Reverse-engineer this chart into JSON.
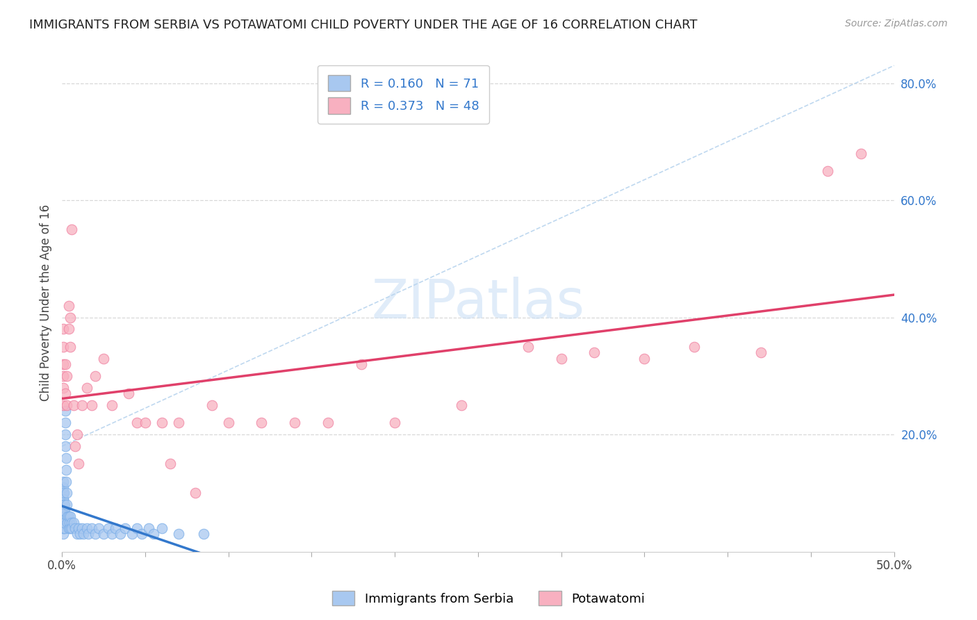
{
  "title": "IMMIGRANTS FROM SERBIA VS POTAWATOMI CHILD POVERTY UNDER THE AGE OF 16 CORRELATION CHART",
  "source": "Source: ZipAtlas.com",
  "ylabel": "Child Poverty Under the Age of 16",
  "xlim": [
    0,
    0.5
  ],
  "ylim": [
    0,
    0.85
  ],
  "watermark": "ZIPatlas",
  "serbia_color": "#a8c8f0",
  "serbia_edge_color": "#7aaee8",
  "potawatomi_color": "#f8b0c0",
  "potawatomi_edge_color": "#f080a0",
  "serbia_line_color": "#3378cc",
  "potawatomi_line_color": "#e0406a",
  "dash_color": "#b8d4ee",
  "grid_color": "#d8d8d8",
  "right_tick_color": "#3378cc",
  "serbia_R": 0.16,
  "serbia_N": 71,
  "potawatomi_R": 0.373,
  "potawatomi_N": 48,
  "serbia_x": [
    0.0005,
    0.0005,
    0.0006,
    0.0006,
    0.0007,
    0.0007,
    0.0008,
    0.0008,
    0.0009,
    0.0009,
    0.001,
    0.001,
    0.001,
    0.001,
    0.001,
    0.001,
    0.001,
    0.0012,
    0.0012,
    0.0013,
    0.0013,
    0.0014,
    0.0015,
    0.0015,
    0.0016,
    0.0017,
    0.0018,
    0.002,
    0.002,
    0.002,
    0.0022,
    0.0023,
    0.0025,
    0.0025,
    0.003,
    0.003,
    0.0032,
    0.0035,
    0.004,
    0.004,
    0.0045,
    0.005,
    0.005,
    0.006,
    0.006,
    0.007,
    0.008,
    0.009,
    0.01,
    0.011,
    0.012,
    0.013,
    0.015,
    0.016,
    0.018,
    0.02,
    0.022,
    0.025,
    0.028,
    0.03,
    0.032,
    0.035,
    0.038,
    0.042,
    0.045,
    0.048,
    0.052,
    0.055,
    0.06,
    0.07,
    0.085
  ],
  "serbia_y": [
    0.05,
    0.08,
    0.06,
    0.1,
    0.07,
    0.09,
    0.04,
    0.11,
    0.06,
    0.08,
    0.03,
    0.05,
    0.07,
    0.09,
    0.12,
    0.04,
    0.06,
    0.05,
    0.08,
    0.06,
    0.1,
    0.07,
    0.04,
    0.06,
    0.08,
    0.05,
    0.07,
    0.22,
    0.24,
    0.2,
    0.18,
    0.16,
    0.14,
    0.12,
    0.1,
    0.08,
    0.06,
    0.05,
    0.04,
    0.06,
    0.05,
    0.04,
    0.06,
    0.05,
    0.04,
    0.05,
    0.04,
    0.03,
    0.04,
    0.03,
    0.04,
    0.03,
    0.04,
    0.03,
    0.04,
    0.03,
    0.04,
    0.03,
    0.04,
    0.03,
    0.04,
    0.03,
    0.04,
    0.03,
    0.04,
    0.03,
    0.04,
    0.03,
    0.04,
    0.03,
    0.03
  ],
  "potawatomi_x": [
    0.001,
    0.001,
    0.001,
    0.001,
    0.001,
    0.001,
    0.002,
    0.002,
    0.003,
    0.003,
    0.004,
    0.004,
    0.005,
    0.005,
    0.006,
    0.007,
    0.008,
    0.009,
    0.01,
    0.012,
    0.015,
    0.018,
    0.02,
    0.025,
    0.03,
    0.04,
    0.045,
    0.05,
    0.06,
    0.065,
    0.07,
    0.08,
    0.09,
    0.1,
    0.12,
    0.14,
    0.16,
    0.18,
    0.2,
    0.24,
    0.28,
    0.3,
    0.32,
    0.35,
    0.38,
    0.42,
    0.46,
    0.48
  ],
  "potawatomi_y": [
    0.25,
    0.28,
    0.3,
    0.32,
    0.35,
    0.38,
    0.27,
    0.32,
    0.25,
    0.3,
    0.38,
    0.42,
    0.35,
    0.4,
    0.55,
    0.25,
    0.18,
    0.2,
    0.15,
    0.25,
    0.28,
    0.25,
    0.3,
    0.33,
    0.25,
    0.27,
    0.22,
    0.22,
    0.22,
    0.15,
    0.22,
    0.1,
    0.25,
    0.22,
    0.22,
    0.22,
    0.22,
    0.32,
    0.22,
    0.25,
    0.35,
    0.33,
    0.34,
    0.33,
    0.35,
    0.34,
    0.65,
    0.68
  ]
}
